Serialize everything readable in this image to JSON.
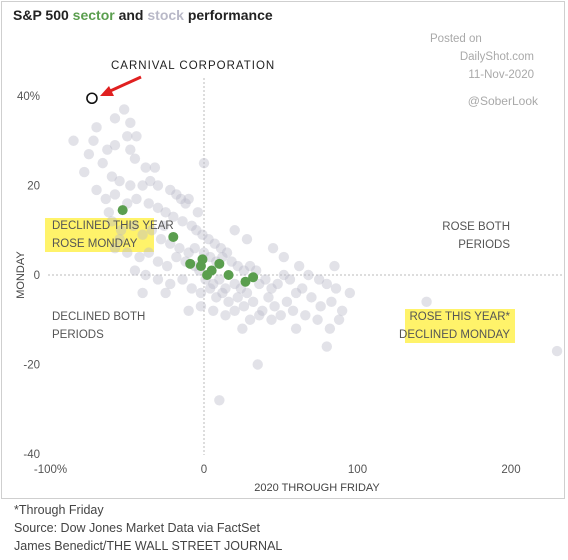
{
  "title": {
    "prefix": "S&P 500 ",
    "sector_word": "sector",
    "middle": " and ",
    "stock_word": "stock",
    "suffix": " performance"
  },
  "colors": {
    "sector": "#5a9e4e",
    "stock": "#b9b9c8",
    "highlight": "#fff36a",
    "arrow": "#e02020",
    "axis": "#bbbbbb"
  },
  "credit": {
    "posted_on": "Posted on",
    "site": "DailyShot.com",
    "date": "11-Nov-2020",
    "handle": "@SoberLook"
  },
  "callout": {
    "label": "CARNIVAL CORPORATION"
  },
  "quadrants": {
    "top_left": [
      "DECLINED THIS YEAR",
      "ROSE MONDAY"
    ],
    "top_right": [
      "ROSE BOTH",
      "PERIODS"
    ],
    "bottom_left": [
      "DECLINED BOTH",
      "PERIODS"
    ],
    "bottom_right": [
      "ROSE THIS YEAR*",
      "DECLINED MONDAY"
    ]
  },
  "footer": {
    "note": "*Through Friday",
    "source": "Source: Dow Jones Market Data via FactSet",
    "byline": "James Benedict/THE WALL STREET JOURNAL"
  },
  "chart_data": {
    "type": "scatter",
    "title": "S&P 500 sector and stock performance",
    "xlabel": "2020 THROUGH FRIDAY",
    "ylabel": "MONDAY",
    "xlim": [
      -100,
      230
    ],
    "ylim": [
      -40,
      45
    ],
    "x_ticks": [
      {
        "value": -100,
        "label": "-100%"
      },
      {
        "value": 0,
        "label": "0"
      },
      {
        "value": 100,
        "label": "100"
      },
      {
        "value": 200,
        "label": "200"
      }
    ],
    "y_ticks": [
      {
        "value": 40,
        "label": "40%"
      },
      {
        "value": 20,
        "label": "20"
      },
      {
        "value": 0,
        "label": "0"
      },
      {
        "value": -20,
        "label": "-20"
      },
      {
        "value": -40,
        "label": "-40"
      }
    ],
    "grid": false,
    "highlight": {
      "name": "CARNIVAL CORPORATION",
      "x": -73,
      "y": 39.5
    },
    "series": [
      {
        "name": "sector",
        "color": "#5a9e4e",
        "points": [
          [
            -53,
            14.5
          ],
          [
            -20,
            8.5
          ],
          [
            -9,
            2.5
          ],
          [
            -1,
            3.5
          ],
          [
            -2,
            2
          ],
          [
            2,
            0
          ],
          [
            5,
            1
          ],
          [
            10,
            2.5
          ],
          [
            16,
            0
          ],
          [
            27,
            -1.5
          ],
          [
            32,
            -0.5
          ]
        ]
      },
      {
        "name": "stock",
        "color": "#b9b9c8",
        "points": [
          [
            -52,
            37
          ],
          [
            -48,
            34
          ],
          [
            -50,
            31
          ],
          [
            -70,
            33
          ],
          [
            -72,
            30
          ],
          [
            -63,
            28
          ],
          [
            -58,
            29
          ],
          [
            -44,
            31
          ],
          [
            -45,
            26
          ],
          [
            -38,
            24
          ],
          [
            -66,
            25
          ],
          [
            -75,
            27
          ],
          [
            -78,
            23
          ],
          [
            -60,
            22
          ],
          [
            -55,
            21
          ],
          [
            -48,
            20
          ],
          [
            -40,
            20
          ],
          [
            -35,
            21
          ],
          [
            -30,
            20
          ],
          [
            -22,
            19
          ],
          [
            -18,
            18
          ],
          [
            -15,
            17
          ],
          [
            -12,
            16
          ],
          [
            -70,
            19
          ],
          [
            -64,
            17
          ],
          [
            -58,
            18
          ],
          [
            -50,
            16
          ],
          [
            -44,
            17
          ],
          [
            -36,
            16
          ],
          [
            -30,
            15
          ],
          [
            -25,
            14
          ],
          [
            -20,
            13
          ],
          [
            -14,
            12
          ],
          [
            -8,
            11
          ],
          [
            -5,
            10
          ],
          [
            -1,
            9
          ],
          [
            3,
            8
          ],
          [
            7,
            7
          ],
          [
            11,
            6
          ],
          [
            15,
            5
          ],
          [
            -60,
            12
          ],
          [
            -54,
            10
          ],
          [
            -46,
            11
          ],
          [
            -40,
            9
          ],
          [
            -34,
            10
          ],
          [
            -28,
            8
          ],
          [
            -22,
            7
          ],
          [
            -16,
            6
          ],
          [
            -10,
            5
          ],
          [
            -6,
            6
          ],
          [
            0,
            5
          ],
          [
            4,
            4
          ],
          [
            8,
            3
          ],
          [
            12,
            4
          ],
          [
            18,
            3
          ],
          [
            22,
            2
          ],
          [
            26,
            1
          ],
          [
            30,
            2
          ],
          [
            34,
            1
          ],
          [
            -58,
            6
          ],
          [
            -50,
            5
          ],
          [
            -42,
            4
          ],
          [
            -36,
            5
          ],
          [
            -30,
            3
          ],
          [
            -24,
            2
          ],
          [
            -18,
            4
          ],
          [
            -12,
            3
          ],
          [
            -6,
            2
          ],
          [
            -3,
            1
          ],
          [
            1,
            -1
          ],
          [
            6,
            -2
          ],
          [
            10,
            -1
          ],
          [
            14,
            -3
          ],
          [
            20,
            -2
          ],
          [
            24,
            -3
          ],
          [
            28,
            -4
          ],
          [
            36,
            -2
          ],
          [
            40,
            -1
          ],
          [
            44,
            -3
          ],
          [
            48,
            -2
          ],
          [
            52,
            0
          ],
          [
            56,
            -1
          ],
          [
            -45,
            1
          ],
          [
            -38,
            0
          ],
          [
            -30,
            -1
          ],
          [
            -22,
            -2
          ],
          [
            -14,
            -1
          ],
          [
            -8,
            -3
          ],
          [
            -2,
            -4
          ],
          [
            4,
            -3
          ],
          [
            8,
            -5
          ],
          [
            12,
            -4
          ],
          [
            16,
            -6
          ],
          [
            22,
            -5
          ],
          [
            26,
            -7
          ],
          [
            32,
            -6
          ],
          [
            38,
            -8
          ],
          [
            42,
            -5
          ],
          [
            46,
            -7
          ],
          [
            54,
            -6
          ],
          [
            60,
            -4
          ],
          [
            64,
            -3
          ],
          [
            70,
            -5
          ],
          [
            76,
            -7
          ],
          [
            80,
            -2
          ],
          [
            86,
            -3
          ],
          [
            90,
            -8
          ],
          [
            -2,
            -7
          ],
          [
            6,
            -8
          ],
          [
            14,
            -9
          ],
          [
            20,
            -8
          ],
          [
            30,
            -10
          ],
          [
            36,
            -9
          ],
          [
            44,
            -10
          ],
          [
            50,
            -9
          ],
          [
            58,
            -8
          ],
          [
            66,
            -9
          ],
          [
            74,
            -10
          ],
          [
            82,
            -12
          ],
          [
            88,
            -10
          ],
          [
            -55,
            8
          ],
          [
            -26,
            11
          ],
          [
            -4,
            14
          ],
          [
            0,
            25
          ],
          [
            -62,
            14
          ],
          [
            -32,
            24
          ],
          [
            -10,
            17
          ],
          [
            20,
            10
          ],
          [
            28,
            8
          ],
          [
            45,
            6
          ],
          [
            52,
            4
          ],
          [
            62,
            2
          ],
          [
            68,
            0
          ],
          [
            75,
            -1
          ],
          [
            83,
            -6
          ],
          [
            80,
            -16
          ],
          [
            10,
            -28
          ],
          [
            35,
            -20
          ],
          [
            145,
            -6
          ],
          [
            230,
            -17
          ],
          [
            -40,
            -4
          ],
          [
            -25,
            -4
          ],
          [
            -10,
            -8
          ],
          [
            25,
            -12
          ],
          [
            60,
            -12
          ],
          [
            95,
            -4
          ],
          [
            85,
            2
          ],
          [
            -48,
            28
          ],
          [
            -85,
            30
          ],
          [
            -58,
            35
          ]
        ]
      }
    ]
  }
}
